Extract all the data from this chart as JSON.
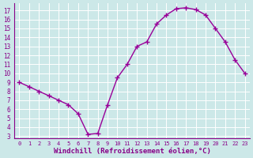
{
  "x": [
    0,
    1,
    2,
    3,
    4,
    5,
    6,
    7,
    8,
    9,
    10,
    11,
    12,
    13,
    14,
    15,
    16,
    17,
    18,
    19,
    20,
    21,
    22,
    23
  ],
  "y": [
    9,
    8.5,
    8,
    7.5,
    7,
    6.5,
    5.5,
    3.2,
    3.3,
    6.5,
    9.5,
    11,
    13,
    13.5,
    15.5,
    16.5,
    17.2,
    17.3,
    17.1,
    16.5,
    15,
    13.5,
    11.5,
    10
  ],
  "line_color": "#990099",
  "marker": "+",
  "marker_size": 4,
  "linewidth": 1.0,
  "xlabel": "Windchill (Refroidissement éolien,°C)",
  "xlabel_fontsize": 6.5,
  "ylabel_ticks": [
    3,
    4,
    5,
    6,
    7,
    8,
    9,
    10,
    11,
    12,
    13,
    14,
    15,
    16,
    17
  ],
  "xticks": [
    0,
    1,
    2,
    3,
    4,
    5,
    6,
    7,
    8,
    9,
    10,
    11,
    12,
    13,
    14,
    15,
    16,
    17,
    18,
    19,
    20,
    21,
    22,
    23
  ],
  "ylim": [
    2.8,
    17.8
  ],
  "xlim": [
    -0.5,
    23.5
  ],
  "bg_color": "#cce8e8",
  "grid_color": "#ffffff",
  "tick_color": "#880088",
  "axis_color": "#880088"
}
